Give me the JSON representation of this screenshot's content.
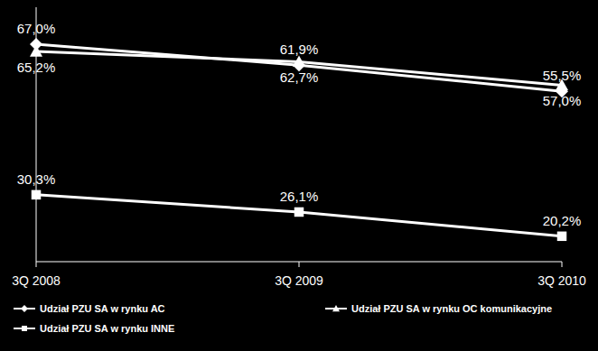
{
  "chart_data": {
    "type": "line",
    "categories": [
      "3Q 2008",
      "3Q 2009",
      "3Q 2010"
    ],
    "ylim": [
      14,
      76
    ],
    "tick_labels": "x",
    "grid": false,
    "legend": "bottom",
    "data_labels": true,
    "series": [
      {
        "name": "Udział PZU SA w rynku AC",
        "color": "#ffffff",
        "marker": "diamond",
        "values": [
          67.0,
          61.9,
          55.5
        ],
        "value_labels": [
          "67,0%",
          "61,9%",
          "55,5%"
        ]
      },
      {
        "name": "Udział PZU SA w rynku OC komunikacyjne",
        "color": "#ffffff",
        "marker": "triangle",
        "values": [
          65.2,
          62.7,
          57.0
        ],
        "value_labels": [
          "65,2%",
          "62,7%",
          "57,0%"
        ]
      },
      {
        "name": "Udział PZU SA w rynku INNE",
        "color": "#ffffff",
        "marker": "square",
        "values": [
          30.3,
          26.1,
          20.2
        ],
        "value_labels": [
          "30,3%",
          "26,1%",
          "20,2%"
        ]
      }
    ]
  }
}
